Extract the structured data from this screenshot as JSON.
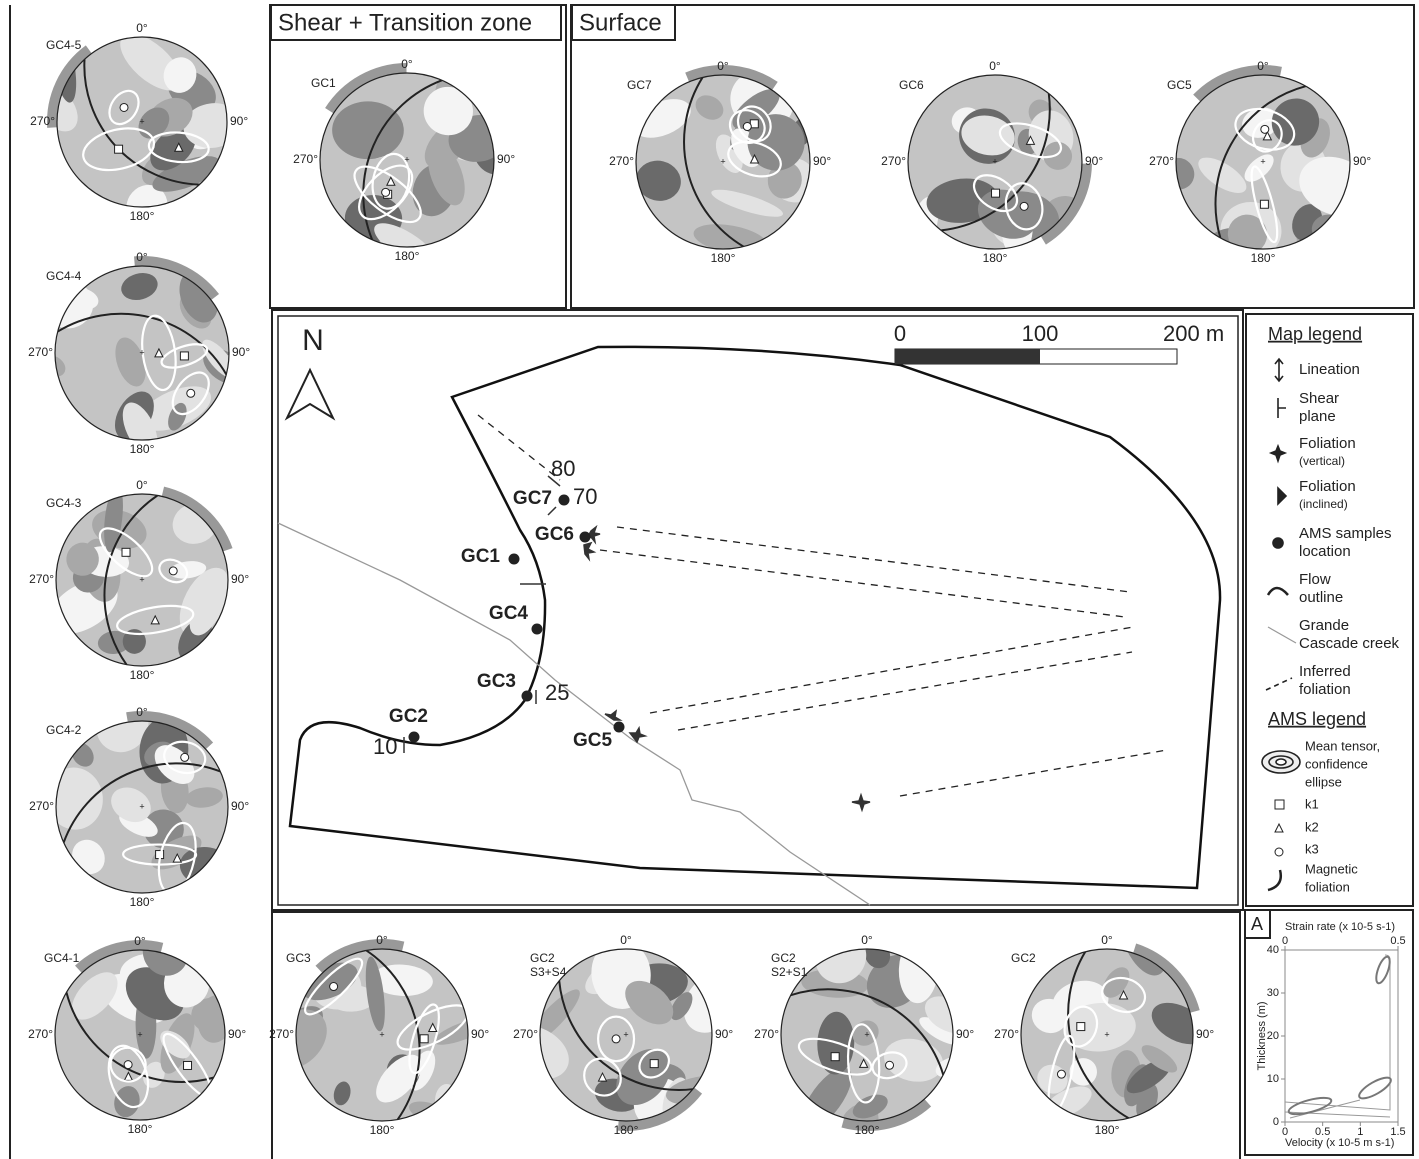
{
  "panels": {
    "shear": "Shear + Transition zone",
    "surface": "Surface"
  },
  "directions": [
    "0°",
    "90°",
    "180°",
    "270°"
  ],
  "nets": [
    {
      "name": "GC4-5"
    },
    {
      "name": "GC4-4"
    },
    {
      "name": "GC4-3"
    },
    {
      "name": "GC4-2"
    },
    {
      "name": "GC4-1"
    },
    {
      "name": "GC1"
    },
    {
      "name": "GC7"
    },
    {
      "name": "GC6"
    },
    {
      "name": "GC5"
    },
    {
      "name": "GC3"
    },
    {
      "name": "GC2",
      "sub": "S3+S4"
    },
    {
      "name": "GC2",
      "sub": "S2+S1"
    },
    {
      "name": "GC2"
    }
  ],
  "map": {
    "north": "N",
    "scale": [
      "0",
      "100",
      "200 m"
    ],
    "samples": [
      "GC7",
      "GC6",
      "GC1",
      "GC4",
      "GC3",
      "GC2",
      "GC5"
    ],
    "dips": [
      "80",
      "70",
      "25",
      "10"
    ]
  },
  "map_legend": {
    "title": "Map legend",
    "items": [
      [
        "Lineation"
      ],
      [
        "Shear",
        "plane"
      ],
      [
        "Foliation",
        "(vertical)"
      ],
      [
        "Foliation",
        "(inclined)"
      ],
      [
        "AMS samples",
        "location"
      ],
      [
        "Flow",
        "outline"
      ],
      [
        "Grande",
        "Cascade creek"
      ],
      [
        "Inferred",
        "foliation"
      ]
    ]
  },
  "ams_legend": {
    "title": "AMS legend",
    "items": [
      [
        "Mean tensor,",
        "confidence",
        "ellipse"
      ],
      [
        "k1"
      ],
      [
        "k2"
      ],
      [
        "k3"
      ],
      [
        "Magnetic",
        "foliation"
      ]
    ]
  },
  "inset": {
    "label": "A",
    "top_axis": "Strain rate (x 10-5 s-1)",
    "toplim": [
      0,
      0.5
    ],
    "top_ticks": [
      0,
      0.5
    ],
    "y_axis": "Thickness (m)",
    "ylim": [
      0,
      40
    ],
    "yticks": [
      0,
      10,
      20,
      30,
      40
    ],
    "x_axis": "Velocity (x 10-5 m s-1)",
    "xlim": [
      0,
      1.5
    ],
    "xticks": [
      0,
      0.5,
      1,
      1.5
    ]
  }
}
